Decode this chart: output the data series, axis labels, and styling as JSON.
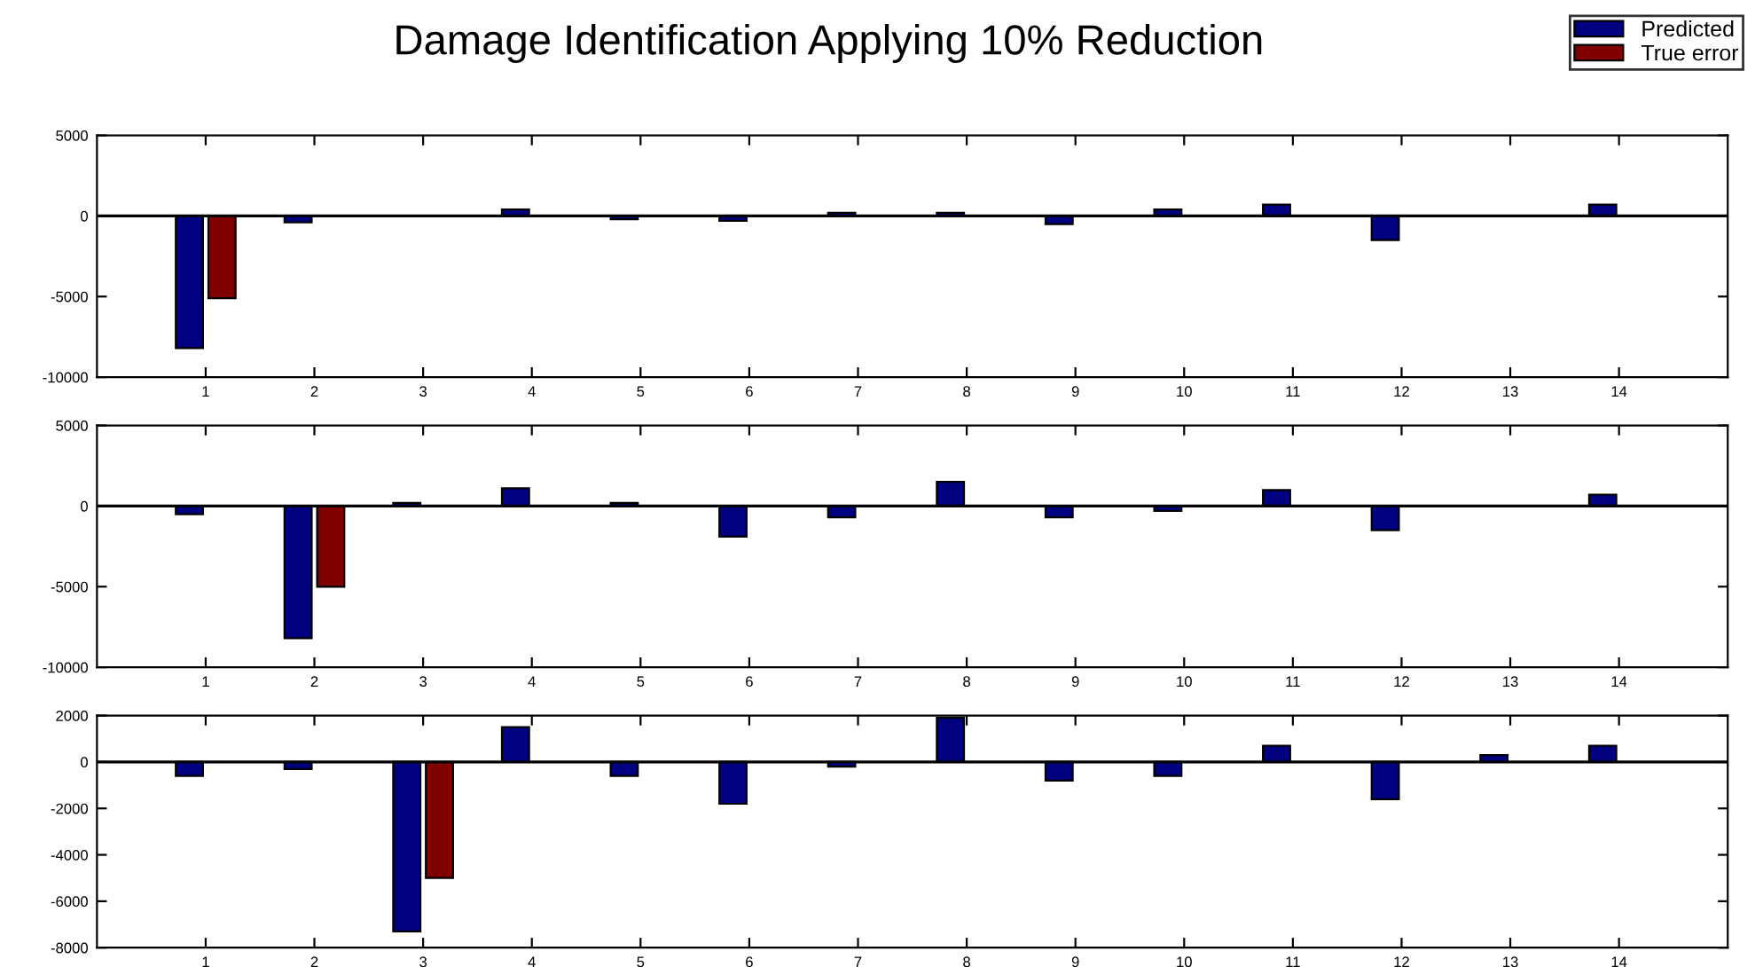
{
  "chart_data": [
    {
      "type": "bar",
      "title": "Damage Identification Applying 10% Reduction",
      "categories": [
        "1",
        "2",
        "3",
        "4",
        "5",
        "6",
        "7",
        "8",
        "9",
        "10",
        "11",
        "12",
        "13",
        "14"
      ],
      "series": [
        {
          "name": "Predicted",
          "color": "#000080",
          "values": [
            -8200,
            -400,
            null,
            400,
            -200,
            -300,
            200,
            200,
            -500,
            400,
            700,
            -1500,
            null,
            700
          ]
        },
        {
          "name": "True error",
          "color": "#800000",
          "values": [
            -5100,
            null,
            null,
            null,
            null,
            null,
            null,
            null,
            null,
            null,
            null,
            null,
            null,
            null
          ]
        }
      ],
      "ylim": [
        -10000,
        5000
      ],
      "yticks": [
        -10000,
        -5000,
        0,
        5000
      ],
      "ref_lines": [
        {
          "axis": "y",
          "value": 0
        }
      ],
      "legend": "top right",
      "grid": false
    },
    {
      "type": "bar",
      "categories": [
        "1",
        "2",
        "3",
        "4",
        "5",
        "6",
        "7",
        "8",
        "9",
        "10",
        "11",
        "12",
        "13",
        "14"
      ],
      "series": [
        {
          "color": "#000080",
          "values": [
            -500,
            -8200,
            200,
            1100,
            200,
            -1900,
            -700,
            1500,
            -700,
            -300,
            1000,
            -1500,
            null,
            700
          ]
        },
        {
          "color": "#800000",
          "values": [
            null,
            -5000,
            null,
            null,
            null,
            null,
            null,
            null,
            null,
            null,
            null,
            null,
            null,
            null
          ]
        }
      ],
      "ylim": [
        -10000,
        5000
      ],
      "yticks": [
        -10000,
        -5000,
        0,
        5000
      ],
      "ref_lines": [
        {
          "axis": "y",
          "value": 0
        }
      ],
      "grid": false
    },
    {
      "type": "bar",
      "categories": [
        "1",
        "2",
        "3",
        "4",
        "5",
        "6",
        "7",
        "8",
        "9",
        "10",
        "11",
        "12",
        "13",
        "14"
      ],
      "series": [
        {
          "color": "#000080",
          "values": [
            -600,
            -300,
            -7300,
            1500,
            -600,
            -1800,
            -200,
            1900,
            -800,
            -600,
            700,
            -1600,
            300,
            700
          ]
        },
        {
          "color": "#800000",
          "values": [
            null,
            null,
            -5000,
            null,
            null,
            null,
            null,
            null,
            null,
            null,
            null,
            null,
            null,
            null
          ]
        }
      ],
      "ylim": [
        -8000,
        2000
      ],
      "yticks": [
        -8000,
        -6000,
        -4000,
        -2000,
        0,
        2000
      ],
      "ref_lines": [
        {
          "axis": "y",
          "value": 0
        }
      ],
      "grid": false
    }
  ]
}
